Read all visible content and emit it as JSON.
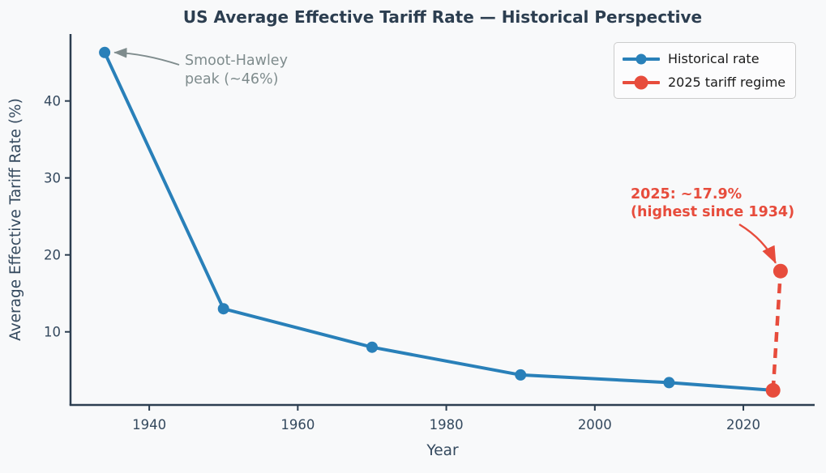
{
  "chart_data": {
    "type": "line",
    "title": "US Average Effective Tariff Rate — Historical Perspective",
    "xlabel": "Year",
    "ylabel": "Average Effective Tariff Rate (%)",
    "xlim": [
      1929.4,
      2029.6
    ],
    "ylim": [
      0.5,
      48.7
    ],
    "x_ticks": [
      1940,
      1960,
      1980,
      2000,
      2020
    ],
    "y_ticks": [
      10,
      20,
      30,
      40
    ],
    "grid": false,
    "legend_position": "upper right",
    "series": [
      {
        "name": "Historical rate",
        "color": "#2980b9",
        "line_style": "solid",
        "marker": "circle",
        "x": [
          1934,
          1950,
          1970,
          1990,
          2010,
          2024
        ],
        "values": [
          46.3,
          13.0,
          8.0,
          4.4,
          3.4,
          2.4
        ]
      },
      {
        "name": "2025 tariff regime",
        "color": "#e74c3c",
        "line_style": "dashed",
        "marker": "circle",
        "x": [
          2024,
          2025
        ],
        "values": [
          2.4,
          17.9
        ]
      }
    ],
    "annotations": [
      {
        "text": "Smoot-Hawley\npeak (~46%)",
        "color": "#7f8c8d",
        "target_x": 1934,
        "target_y": 46.3
      },
      {
        "text": "2025: ~17.9%\n(highest since 1934)",
        "color": "#e74c3c",
        "target_x": 2025,
        "target_y": 17.9
      }
    ]
  },
  "colors": {
    "background": "#f8f9fa",
    "title": "#2c3e50",
    "axis_label": "#34495e",
    "tick_label": "#34495e",
    "spine": "#2c3e50",
    "historical": "#2980b9",
    "regime_2025": "#e74c3c",
    "annotation_gray": "#7f8c8d",
    "legend_border": "#cccccc",
    "legend_bg": "#fcfcfd",
    "legend_text": "#1a1a1a"
  }
}
